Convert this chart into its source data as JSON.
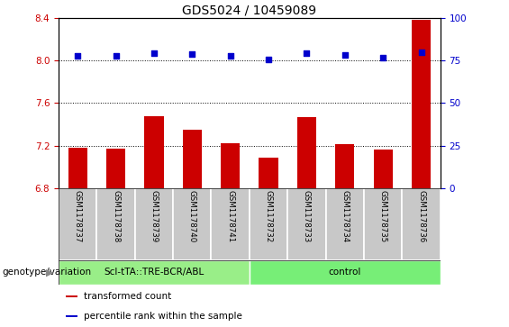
{
  "title": "GDS5024 / 10459089",
  "samples": [
    "GSM1178737",
    "GSM1178738",
    "GSM1178739",
    "GSM1178740",
    "GSM1178741",
    "GSM1178732",
    "GSM1178733",
    "GSM1178734",
    "GSM1178735",
    "GSM1178736"
  ],
  "bar_values": [
    7.18,
    7.17,
    7.48,
    7.35,
    7.22,
    7.09,
    7.47,
    7.21,
    7.16,
    8.38
  ],
  "dot_values": [
    8.04,
    8.04,
    8.07,
    8.06,
    8.04,
    8.01,
    8.07,
    8.05,
    8.03,
    8.08
  ],
  "ylim_left": [
    6.8,
    8.4
  ],
  "ylim_right": [
    0,
    100
  ],
  "yticks_left": [
    6.8,
    7.2,
    7.6,
    8.0,
    8.4
  ],
  "yticks_right": [
    0,
    25,
    50,
    75,
    100
  ],
  "bar_color": "#cc0000",
  "dot_color": "#0000cc",
  "groups": [
    {
      "label": "Scl-tTA::TRE-BCR/ABL",
      "start": 0,
      "end": 5,
      "color": "#99ee88"
    },
    {
      "label": "control",
      "start": 5,
      "end": 10,
      "color": "#77ee77"
    }
  ],
  "group_row_label": "genotype/variation",
  "legend_items": [
    {
      "color": "#cc0000",
      "label": "transformed count"
    },
    {
      "color": "#0000cc",
      "label": "percentile rank within the sample"
    }
  ],
  "dotted_lines": [
    8.0,
    7.6,
    7.2
  ],
  "tick_label_color_left": "#cc0000",
  "tick_label_color_right": "#0000cc",
  "title_color": "#000000",
  "bg_color": "#ffffff",
  "sample_bg_color": "#c8c8c8"
}
